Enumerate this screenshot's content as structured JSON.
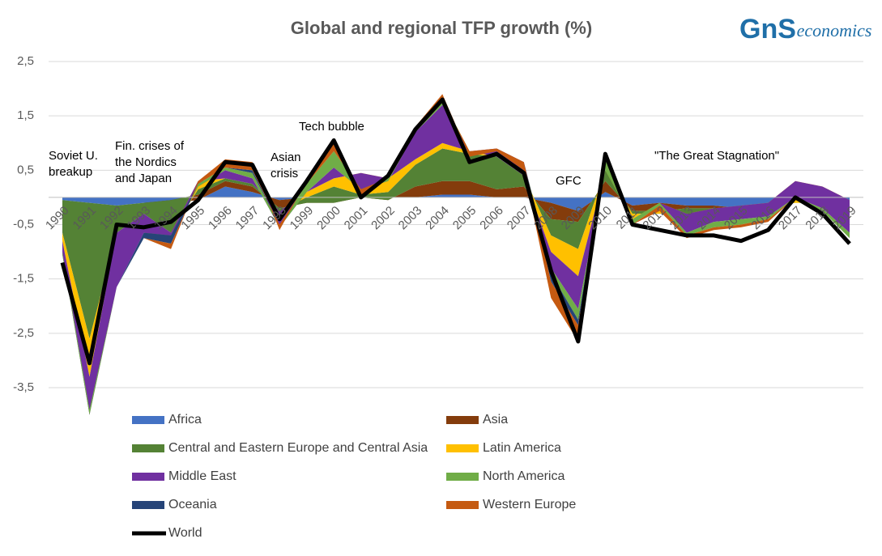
{
  "chart_data": {
    "type": "stacked-area",
    "title": "Global and regional TFP growth (%)",
    "logo_mark": "GnS",
    "logo_text": "economics",
    "categories": [
      "1990",
      "1991",
      "1992",
      "1993",
      "1994",
      "1995",
      "1996",
      "1997",
      "1998",
      "1999",
      "2000",
      "2001",
      "2002",
      "2003",
      "2004",
      "2005",
      "2006",
      "2007",
      "2008",
      "2009",
      "2010",
      "2011",
      "2012",
      "2013",
      "2014",
      "2015",
      "2016",
      "2017",
      "2018",
      "2019"
    ],
    "ylim": [
      -3.5,
      2.5
    ],
    "yticks": [
      {
        "value": 2.5,
        "label": "2,5"
      },
      {
        "value": 1.5,
        "label": "1,5"
      },
      {
        "value": 0.5,
        "label": "0,5"
      },
      {
        "value": -0.5,
        "label": "-0,5"
      },
      {
        "value": -1.5,
        "label": "-1,5"
      },
      {
        "value": -2.5,
        "label": "-2,5"
      },
      {
        "value": -3.5,
        "label": "-3,5"
      }
    ],
    "grid": true,
    "series": [
      {
        "name": "Africa",
        "color": "#4472c4",
        "values": [
          -0.05,
          -0.1,
          -0.15,
          -0.1,
          -0.1,
          -0.05,
          0.2,
          0.1,
          -0.05,
          0,
          0,
          0,
          0,
          0,
          0.05,
          0.05,
          0,
          0,
          -0.1,
          -0.25,
          0.1,
          -0.15,
          -0.1,
          -0.15,
          -0.15,
          -0.2,
          -0.15,
          -0.05,
          -0.05,
          -0.05
        ]
      },
      {
        "name": "Asia",
        "color": "#843c0c",
        "values": [
          0,
          0,
          0,
          0,
          0.05,
          0.1,
          0.1,
          0.1,
          -0.15,
          -0.1,
          -0.1,
          0,
          -0.05,
          0.2,
          0.25,
          0.25,
          0.15,
          0.2,
          -0.3,
          -0.2,
          0.2,
          -0.1,
          -0.15,
          -0.05,
          -0.05,
          -0.05,
          -0.05,
          0,
          0,
          0
        ]
      },
      {
        "name": "Central and Eastern Europe and Central Asia",
        "color": "#548235",
        "values": [
          -0.6,
          -2.5,
          -0.5,
          -0.2,
          -0.6,
          0.1,
          0.05,
          0.05,
          -0.05,
          0.1,
          0.3,
          0.05,
          0.15,
          0.4,
          0.6,
          0.5,
          0.6,
          0.2,
          -0.3,
          -0.5,
          0.2,
          -0.05,
          -0.05,
          -0.1,
          -0.15,
          0,
          0.05,
          -0.05,
          -0.05,
          -0.1
        ]
      },
      {
        "name": "Latin America",
        "color": "#ffc000",
        "values": [
          -0.15,
          -0.7,
          0,
          0,
          0,
          0.15,
          0,
          0,
          0,
          0.1,
          0.15,
          0.4,
          0.25,
          0.1,
          0.1,
          0.05,
          0,
          0,
          -0.3,
          -0.5,
          0,
          -0.1,
          0.2,
          0,
          0.15,
          0.1,
          0.05,
          0.4,
          0.3,
          0.1
        ]
      },
      {
        "name": "Middle East",
        "color": "#7030a0",
        "values": [
          -0.25,
          -0.7,
          -1.0,
          -0.35,
          -0.1,
          -0.1,
          0.15,
          0.1,
          -0.3,
          0,
          0.2,
          -0.3,
          -0.05,
          0.5,
          0.7,
          0,
          0.15,
          0.25,
          -0.3,
          -0.6,
          0,
          0,
          0,
          -0.35,
          -0.25,
          -0.25,
          -0.25,
          -0.3,
          -0.4,
          -0.6
        ]
      },
      {
        "name": "North America",
        "color": "#70ad47",
        "values": [
          0.05,
          0.1,
          0,
          0,
          0.05,
          0.05,
          0.05,
          0.1,
          0.05,
          0.15,
          0.3,
          0,
          0.05,
          0.1,
          0.1,
          0,
          0,
          0,
          -0.1,
          -0.2,
          0.2,
          -0.1,
          -0.05,
          -0.05,
          -0.1,
          -0.1,
          -0.05,
          0,
          -0.05,
          -0.1
        ]
      },
      {
        "name": "Oceania",
        "color": "#264478",
        "values": [
          0,
          0,
          0,
          -0.1,
          -0.15,
          0,
          0,
          0.05,
          0,
          0,
          0,
          0,
          0,
          0,
          0,
          0,
          0,
          0,
          -0.15,
          -0.1,
          0,
          0,
          0,
          0,
          0,
          0,
          0,
          0,
          0,
          0
        ]
      },
      {
        "name": "Western Europe",
        "color": "#c55a11",
        "values": [
          0,
          0,
          0,
          0,
          -0.1,
          0.05,
          0.15,
          0.15,
          -0.1,
          0.05,
          0.2,
          -0.15,
          0.05,
          0,
          0.1,
          -0.1,
          -0.05,
          -0.15,
          -0.3,
          -0.3,
          0.1,
          0,
          -0.1,
          -0.05,
          -0.05,
          -0.05,
          -0.05,
          0,
          0,
          0
        ]
      }
    ],
    "line": {
      "name": "World",
      "color": "#000000",
      "values": [
        -1.2,
        -3.05,
        -0.5,
        -0.55,
        -0.45,
        -0.05,
        0.65,
        0.6,
        -0.4,
        0.3,
        1.05,
        0,
        0.4,
        1.25,
        1.8,
        0.65,
        0.8,
        0.45,
        -1.35,
        -2.65,
        0.8,
        -0.5,
        -0.6,
        -0.7,
        -0.7,
        -0.8,
        -0.6,
        0,
        -0.3,
        -0.85
      ]
    },
    "annotations": [
      {
        "lines": [
          "Soviet U.",
          "breakup"
        ]
      },
      {
        "lines": [
          "Fin. crises of",
          "the Nordics",
          "and Japan"
        ]
      },
      {
        "lines": [
          "Asian",
          "crisis"
        ]
      },
      {
        "lines": [
          "Tech bubble"
        ]
      },
      {
        "lines": [
          "GFC"
        ]
      },
      {
        "lines": [
          "\"The Great Stagnation\""
        ]
      }
    ]
  }
}
